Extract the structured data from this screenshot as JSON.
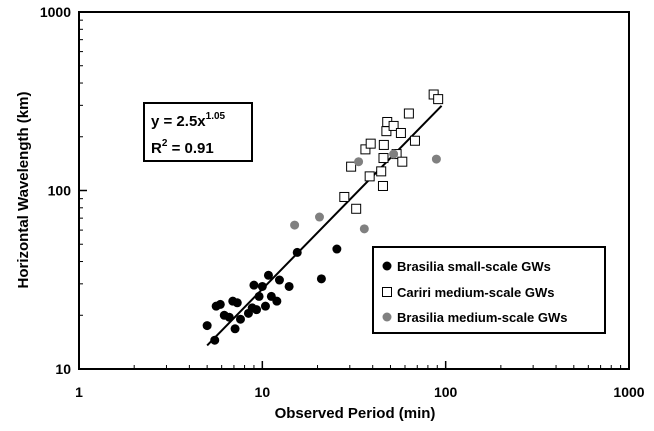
{
  "chart_data": {
    "type": "scatter",
    "xscale": "log",
    "yscale": "log",
    "xlim": [
      1,
      1000
    ],
    "ylim": [
      10,
      1000
    ],
    "xlabel": "Observed Period (min)",
    "ylabel": "Horizontal Wavelength (km)",
    "x_ticks": [
      "1",
      "10",
      "100",
      "1000"
    ],
    "y_ticks": [
      "10",
      "100",
      "1000"
    ],
    "grid": false,
    "legend_position": "lower-right",
    "annotation": {
      "equation_base": "y = 2.5x",
      "equation_exponent": "1.05",
      "r_squared": "R",
      "r_squared_exponent": "2",
      "r_squared_value": " = 0.91"
    },
    "fit": {
      "a": 2.5,
      "b": 1.05,
      "x_range": [
        5,
        95
      ],
      "color": "#000000"
    },
    "series": [
      {
        "name": "Brasilia small-scale GWs",
        "marker": "filled-circle",
        "color": "#000000",
        "points": [
          [
            5.0,
            17.5
          ],
          [
            5.5,
            14.5
          ],
          [
            5.6,
            22.5
          ],
          [
            5.9,
            23.0
          ],
          [
            6.2,
            20.0
          ],
          [
            6.6,
            19.5
          ],
          [
            6.9,
            24.0
          ],
          [
            7.1,
            16.8
          ],
          [
            7.3,
            23.5
          ],
          [
            7.6,
            19.0
          ],
          [
            8.4,
            20.5
          ],
          [
            8.8,
            22.0
          ],
          [
            9.0,
            29.5
          ],
          [
            9.3,
            21.5
          ],
          [
            9.6,
            25.5
          ],
          [
            10.0,
            29.0
          ],
          [
            10.4,
            22.5
          ],
          [
            10.8,
            33.5
          ],
          [
            11.2,
            25.5
          ],
          [
            12.0,
            24.0
          ],
          [
            12.4,
            31.5
          ],
          [
            14.0,
            29.0
          ],
          [
            15.5,
            45.0
          ],
          [
            21.0,
            32.0
          ],
          [
            25.5,
            47.0
          ]
        ]
      },
      {
        "name": "Cariri medium-scale GWs",
        "marker": "open-square",
        "color": "#000000",
        "points": [
          [
            28.0,
            92.0
          ],
          [
            30.5,
            136.0
          ],
          [
            32.5,
            79.0
          ],
          [
            36.5,
            170.0
          ],
          [
            38.5,
            120.0
          ],
          [
            39.0,
            183.0
          ],
          [
            44.5,
            128.0
          ],
          [
            45.5,
            106.0
          ],
          [
            45.8,
            152.0
          ],
          [
            46.0,
            180.0
          ],
          [
            47.5,
            215.0
          ],
          [
            48.0,
            242.0
          ],
          [
            52.0,
            230.0
          ],
          [
            54.0,
            160.0
          ],
          [
            57.0,
            210.0
          ],
          [
            58.0,
            145.0
          ],
          [
            63.0,
            270.0
          ],
          [
            68.0,
            190.0
          ],
          [
            86.0,
            345.0
          ],
          [
            91.0,
            325.0
          ]
        ]
      },
      {
        "name": "Brasilia medium-scale GWs",
        "marker": "gray-circle",
        "color": "#808080",
        "points": [
          [
            15.0,
            64.0
          ],
          [
            20.5,
            71.0
          ],
          [
            33.5,
            145.0
          ],
          [
            36.0,
            61.0
          ],
          [
            52.0,
            160.0
          ],
          [
            89.0,
            150.0
          ]
        ]
      }
    ]
  }
}
